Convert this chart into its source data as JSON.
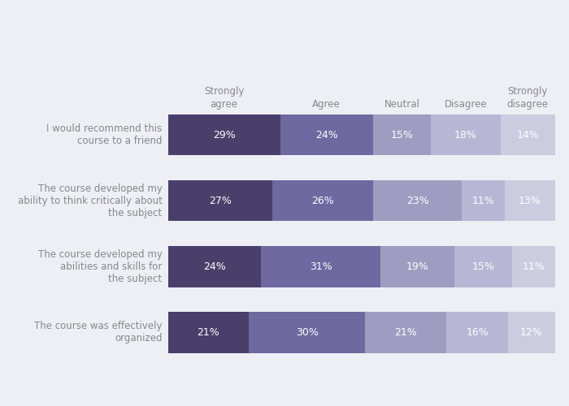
{
  "categories": [
    "I would recommend this\ncourse to a friend",
    "The course developed my\nability to think critically about\nthe subject",
    "The course developed my\nabilities and skills for\nthe subject",
    "The course was effectively\norganized"
  ],
  "column_labels": [
    "Strongly\nagree",
    "Agree",
    "Neutral",
    "Disagree",
    "Strongly\ndisagree"
  ],
  "values": [
    [
      29,
      24,
      15,
      18,
      14
    ],
    [
      27,
      26,
      23,
      11,
      13
    ],
    [
      24,
      31,
      19,
      15,
      11
    ],
    [
      21,
      30,
      21,
      16,
      12
    ]
  ],
  "colors": [
    "#4a3f6b",
    "#7068a0",
    "#9e9cc0",
    "#b8b6d4",
    "#cccce0"
  ],
  "bg_color": "#eeeef5",
  "text_color": "#ffffff",
  "label_color": "#888888",
  "bar_height": 0.62,
  "figsize": [
    7.0,
    5.0
  ],
  "dpi": 100
}
